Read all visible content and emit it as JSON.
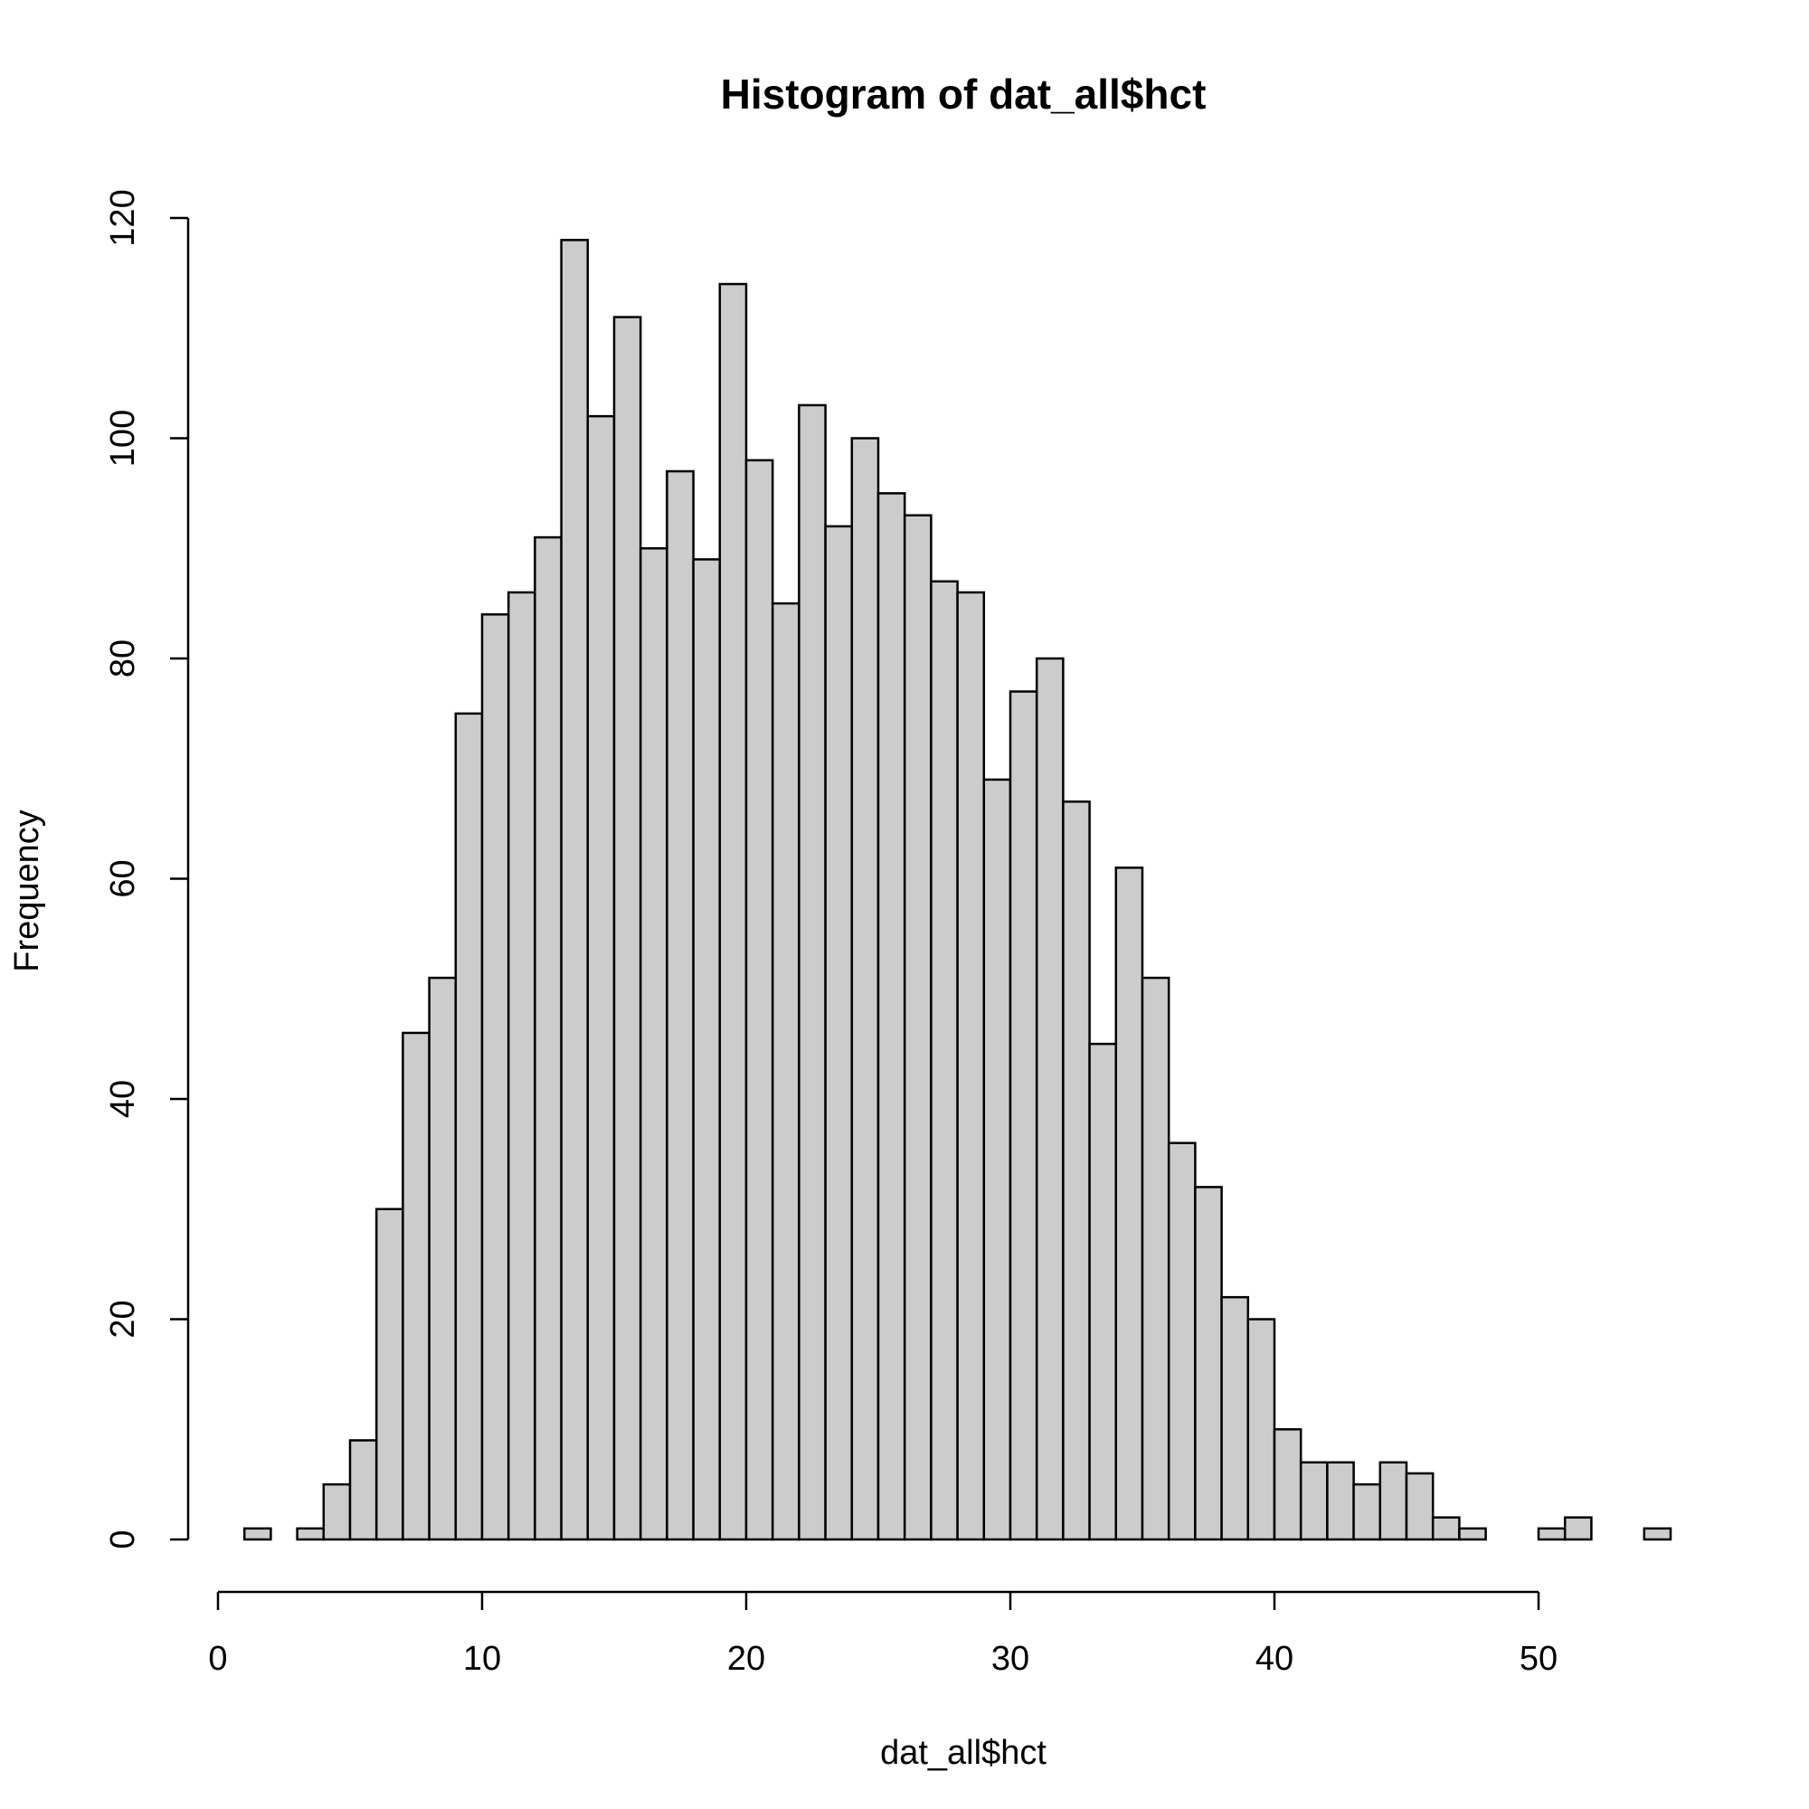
{
  "chart_data": {
    "type": "bar",
    "title": "Histogram of dat_all$hct",
    "xlabel": "dat_all$hct",
    "ylabel": "Frequency",
    "bin_width": 1,
    "x": [
      1.5,
      3.5,
      4.5,
      5.5,
      6.5,
      7.5,
      8.5,
      9.5,
      10.5,
      11.5,
      12.5,
      13.5,
      14.5,
      15.5,
      16.5,
      17.5,
      18.5,
      19.5,
      20.5,
      21.5,
      22.5,
      23.5,
      24.5,
      25.5,
      26.5,
      27.5,
      28.5,
      29.5,
      30.5,
      31.5,
      32.5,
      33.5,
      34.5,
      35.5,
      36.5,
      37.5,
      38.5,
      39.5,
      40.5,
      41.5,
      42.5,
      43.5,
      44.5,
      45.5,
      46.5,
      47.5,
      50.5,
      51.5,
      54.5
    ],
    "values": [
      1,
      1,
      5,
      9,
      30,
      46,
      51,
      75,
      84,
      86,
      91,
      118,
      102,
      111,
      90,
      97,
      89,
      114,
      98,
      85,
      103,
      92,
      100,
      95,
      93,
      87,
      86,
      69,
      77,
      80,
      67,
      45,
      61,
      51,
      36,
      32,
      22,
      20,
      10,
      7,
      7,
      5,
      7,
      6,
      2,
      1,
      1,
      2,
      1
    ],
    "xlim": [
      0,
      50
    ],
    "ylim": [
      0,
      120
    ],
    "xticks": [
      0,
      10,
      20,
      30,
      40,
      50
    ],
    "yticks": [
      0,
      20,
      40,
      60,
      80,
      100,
      120
    ],
    "grid": false,
    "colors": {
      "bar_fill": "#cccccc",
      "bar_stroke": "#000000"
    }
  }
}
